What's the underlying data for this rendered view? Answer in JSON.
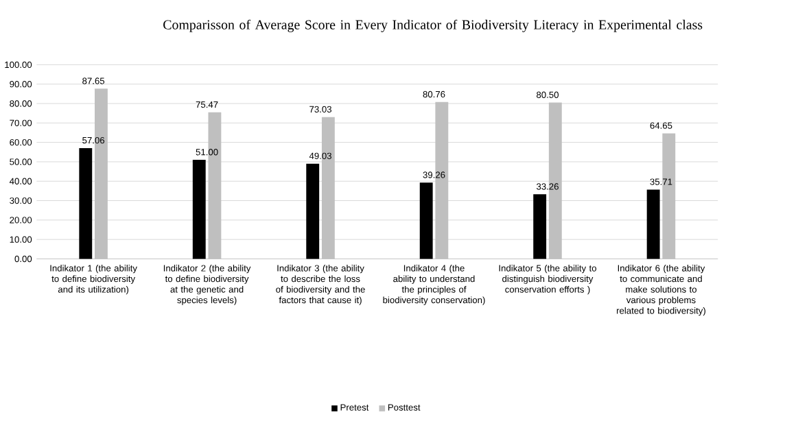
{
  "chart_data": {
    "type": "bar",
    "title": "Comparisson of Average Score in Every Indicator of Biodiversity Literacy in Experimental class",
    "categories": [
      "Indikator 1 (the ability to define biodiversity and its utilization)",
      "Indikator 2 (the ability to define biodiversity at the genetic and species levels)",
      "Indikator 3 (the ability to describe the loss of biodiversity and the factors that cause it)",
      "Indikator 4 (the ability to understand the principles of biodiversity conservation)",
      "Indikator 5 (the ability to distinguish biodiversity conservation efforts )",
      "Indikator 6 (the ability to communicate and make solutions to various problems related to biodiversity)"
    ],
    "series": [
      {
        "name": "Pretest",
        "color": "#000000",
        "values": [
          57.06,
          51.0,
          49.03,
          39.26,
          33.26,
          35.71
        ],
        "value_labels": [
          "57.06",
          "51.00",
          "49.03",
          "39.26",
          "33.26",
          "35.71"
        ]
      },
      {
        "name": "Posttest",
        "color": "#bfbfbf",
        "values": [
          87.65,
          75.47,
          73.03,
          80.76,
          80.5,
          64.65
        ],
        "value_labels": [
          "87.65",
          "75.47",
          "73.03",
          "80.76",
          "80.50",
          "64.65"
        ]
      }
    ],
    "ylim": [
      0,
      100
    ],
    "yticks": [
      {
        "value": 0,
        "label": "0.00"
      },
      {
        "value": 10,
        "label": "10.00"
      },
      {
        "value": 20,
        "label": "20.00"
      },
      {
        "value": 30,
        "label": "30.00"
      },
      {
        "value": 40,
        "label": "40.00"
      },
      {
        "value": 50,
        "label": "50.00"
      },
      {
        "value": 60,
        "label": "60.00"
      },
      {
        "value": 70,
        "label": "70.00"
      },
      {
        "value": 80,
        "label": "80.00"
      },
      {
        "value": 90,
        "label": "90.00"
      },
      {
        "value": 100,
        "label": "100.00"
      }
    ],
    "grid": "y",
    "legend": "bottom"
  }
}
